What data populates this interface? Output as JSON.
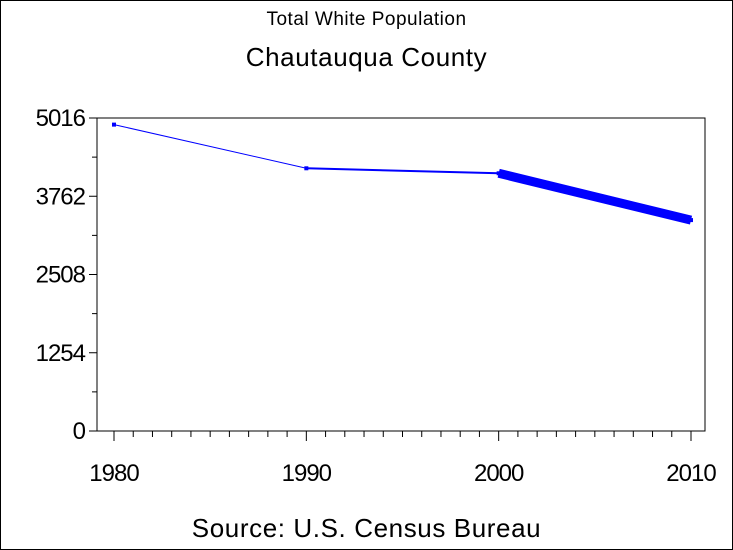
{
  "chart_data": {
    "type": "line",
    "title": "Total White Population",
    "subtitle": "Chautauqua County",
    "source": "Source: U.S. Census Bureau",
    "xlabel": "",
    "ylabel": "",
    "x": [
      1980,
      1990,
      2000,
      2010
    ],
    "x_tick_labels": [
      "1980",
      "1990",
      "2000",
      "2010"
    ],
    "y_tick_labels": [
      "0",
      "1254",
      "2508",
      "3762",
      "5016"
    ],
    "y_ticks": [
      0,
      1254,
      2508,
      3762,
      5016
    ],
    "ylim": [
      0,
      5016
    ],
    "xlim": [
      1980,
      2010
    ],
    "grid": false,
    "series": [
      {
        "values": [
          4910,
          4210,
          4130,
          3380
        ],
        "color": "#0000ff"
      }
    ]
  }
}
